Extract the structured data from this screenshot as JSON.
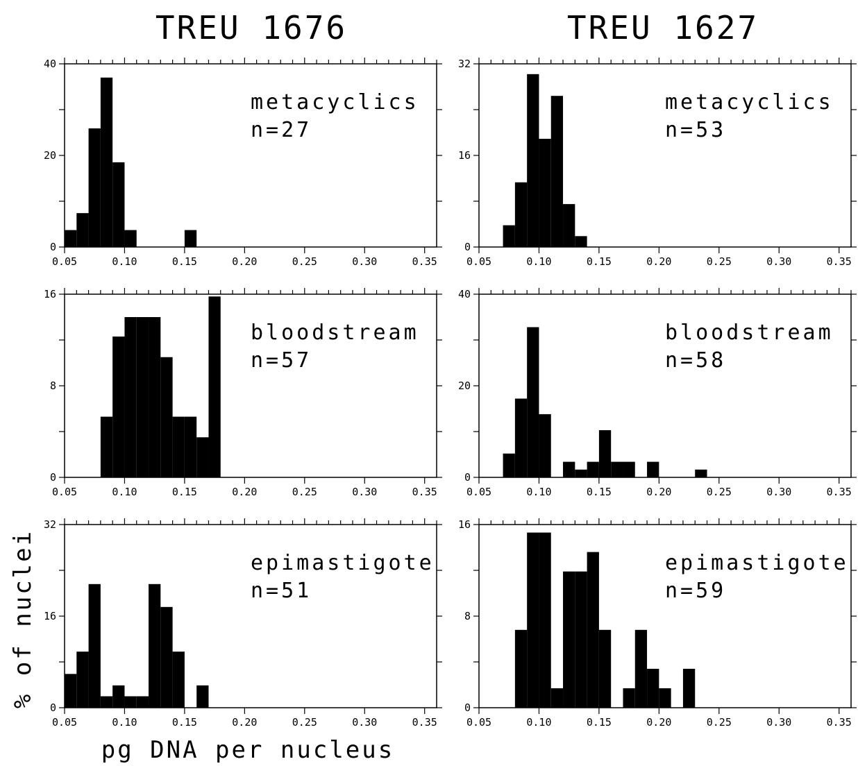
{
  "figure": {
    "column_titles": [
      "TREU 1676",
      "TREU 1627"
    ],
    "ylabel": "% of nuclei",
    "xlabel": "pg DNA per nucleus"
  },
  "chart_data": [
    {
      "type": "bar",
      "strain": "TREU 1676",
      "label": "metacyclics",
      "n_label": "n=27",
      "xlim": [
        0.05,
        0.36
      ],
      "ylim": [
        0,
        40
      ],
      "xticks": [
        "0.05",
        "0.10",
        "0.15",
        "0.20",
        "0.25",
        "0.30",
        "0.35"
      ],
      "yticks": [
        "0",
        "20",
        "40"
      ],
      "bin_width": 0.01,
      "bins": [
        {
          "x": 0.055,
          "y": 3.7
        },
        {
          "x": 0.065,
          "y": 7.4
        },
        {
          "x": 0.075,
          "y": 25.9
        },
        {
          "x": 0.085,
          "y": 37.0
        },
        {
          "x": 0.095,
          "y": 18.5
        },
        {
          "x": 0.105,
          "y": 3.7
        },
        {
          "x": 0.155,
          "y": 3.7
        }
      ]
    },
    {
      "type": "bar",
      "strain": "TREU 1627",
      "label": "metacyclics",
      "n_label": "n=53",
      "xlim": [
        0.05,
        0.36
      ],
      "ylim": [
        0,
        32
      ],
      "xticks": [
        "0.05",
        "0.10",
        "0.15",
        "0.20",
        "0.25",
        "0.30",
        "0.35"
      ],
      "yticks": [
        "0",
        "16",
        "32"
      ],
      "bin_width": 0.01,
      "bins": [
        {
          "x": 0.075,
          "y": 3.8
        },
        {
          "x": 0.085,
          "y": 11.3
        },
        {
          "x": 0.095,
          "y": 30.2
        },
        {
          "x": 0.105,
          "y": 18.9
        },
        {
          "x": 0.115,
          "y": 26.4
        },
        {
          "x": 0.125,
          "y": 7.5
        },
        {
          "x": 0.135,
          "y": 1.9
        }
      ]
    },
    {
      "type": "bar",
      "strain": "TREU 1676",
      "label": "bloodstream",
      "n_label": "n=57",
      "xlim": [
        0.05,
        0.36
      ],
      "ylim": [
        0,
        16
      ],
      "xticks": [
        "0.05",
        "0.10",
        "0.15",
        "0.20",
        "0.25",
        "0.30",
        "0.35"
      ],
      "yticks": [
        "0",
        "8",
        "16"
      ],
      "bin_width": 0.01,
      "bins": [
        {
          "x": 0.085,
          "y": 5.3
        },
        {
          "x": 0.095,
          "y": 12.3
        },
        {
          "x": 0.105,
          "y": 14.0
        },
        {
          "x": 0.115,
          "y": 14.0
        },
        {
          "x": 0.125,
          "y": 14.0
        },
        {
          "x": 0.135,
          "y": 10.5
        },
        {
          "x": 0.145,
          "y": 5.3
        },
        {
          "x": 0.155,
          "y": 5.3
        },
        {
          "x": 0.165,
          "y": 3.5
        },
        {
          "x": 0.175,
          "y": 15.8
        }
      ]
    },
    {
      "type": "bar",
      "strain": "TREU 1627",
      "label": "bloodstream",
      "n_label": "n=58",
      "xlim": [
        0.05,
        0.36
      ],
      "ylim": [
        0,
        40
      ],
      "xticks": [
        "0.05",
        "0.10",
        "0.15",
        "0.20",
        "0.25",
        "0.30",
        "0.35"
      ],
      "yticks": [
        "0",
        "20",
        "40"
      ],
      "bin_width": 0.01,
      "bins": [
        {
          "x": 0.075,
          "y": 5.2
        },
        {
          "x": 0.085,
          "y": 17.2
        },
        {
          "x": 0.095,
          "y": 32.8
        },
        {
          "x": 0.105,
          "y": 13.8
        },
        {
          "x": 0.125,
          "y": 3.4
        },
        {
          "x": 0.135,
          "y": 1.7
        },
        {
          "x": 0.145,
          "y": 3.4
        },
        {
          "x": 0.155,
          "y": 10.3
        },
        {
          "x": 0.165,
          "y": 3.4
        },
        {
          "x": 0.175,
          "y": 3.4
        },
        {
          "x": 0.195,
          "y": 3.4
        },
        {
          "x": 0.235,
          "y": 1.7
        }
      ]
    },
    {
      "type": "bar",
      "strain": "TREU 1676",
      "label": "epimastigote",
      "n_label": "n=51",
      "xlim": [
        0.05,
        0.36
      ],
      "ylim": [
        0,
        32
      ],
      "xticks": [
        "0.05",
        "0.10",
        "0.15",
        "0.20",
        "0.25",
        "0.30",
        "0.35"
      ],
      "yticks": [
        "0",
        "16",
        "32"
      ],
      "bin_width": 0.01,
      "bins": [
        {
          "x": 0.055,
          "y": 5.9
        },
        {
          "x": 0.065,
          "y": 9.8
        },
        {
          "x": 0.075,
          "y": 21.6
        },
        {
          "x": 0.085,
          "y": 2.0
        },
        {
          "x": 0.095,
          "y": 3.9
        },
        {
          "x": 0.105,
          "y": 2.0
        },
        {
          "x": 0.115,
          "y": 2.0
        },
        {
          "x": 0.125,
          "y": 21.6
        },
        {
          "x": 0.135,
          "y": 17.6
        },
        {
          "x": 0.145,
          "y": 9.8
        },
        {
          "x": 0.165,
          "y": 3.9
        }
      ]
    },
    {
      "type": "bar",
      "strain": "TREU 1627",
      "label": "epimastigote",
      "n_label": "n=59",
      "xlim": [
        0.05,
        0.36
      ],
      "ylim": [
        0,
        16
      ],
      "xticks": [
        "0.05",
        "0.10",
        "0.15",
        "0.20",
        "0.25",
        "0.30",
        "0.35"
      ],
      "yticks": [
        "0",
        "8",
        "16"
      ],
      "bin_width": 0.01,
      "bins": [
        {
          "x": 0.085,
          "y": 6.8
        },
        {
          "x": 0.095,
          "y": 15.3
        },
        {
          "x": 0.105,
          "y": 15.3
        },
        {
          "x": 0.115,
          "y": 1.7
        },
        {
          "x": 0.125,
          "y": 11.9
        },
        {
          "x": 0.135,
          "y": 11.9
        },
        {
          "x": 0.145,
          "y": 13.6
        },
        {
          "x": 0.155,
          "y": 6.8
        },
        {
          "x": 0.175,
          "y": 1.7
        },
        {
          "x": 0.185,
          "y": 6.8
        },
        {
          "x": 0.195,
          "y": 3.4
        },
        {
          "x": 0.205,
          "y": 1.7
        },
        {
          "x": 0.225,
          "y": 3.4
        }
      ]
    }
  ]
}
